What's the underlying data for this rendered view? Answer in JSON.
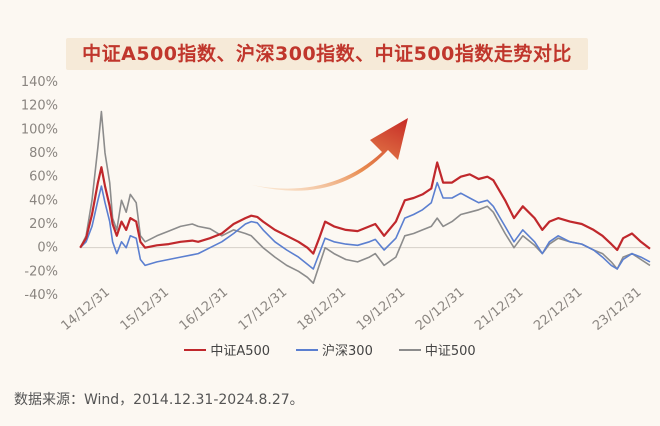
{
  "chart_data": {
    "type": "line",
    "title": "中证A500指数、沪深300指数、中证500指数走势对比",
    "xlabel": "",
    "ylabel": "",
    "ylim": [
      -40,
      140
    ],
    "y_ticks": [
      "-40%",
      "-20%",
      "0%",
      "20%",
      "40%",
      "60%",
      "80%",
      "100%",
      "120%",
      "140%"
    ],
    "x_ticks": [
      "14/12/31",
      "15/12/31",
      "16/12/31",
      "17/12/31",
      "18/12/31",
      "19/12/31",
      "20/12/31",
      "21/12/31",
      "22/12/31",
      "23/12/31"
    ],
    "xlim": [
      2014.997,
      2024.655
    ],
    "grid": false,
    "legend_position": "bottom",
    "series": [
      {
        "name": "中证A500",
        "color": "#c0282c",
        "points": [
          [
            2015.0,
            0
          ],
          [
            2015.1,
            8
          ],
          [
            2015.2,
            28
          ],
          [
            2015.3,
            55
          ],
          [
            2015.36,
            68
          ],
          [
            2015.42,
            52
          ],
          [
            2015.5,
            35
          ],
          [
            2015.55,
            20
          ],
          [
            2015.62,
            10
          ],
          [
            2015.7,
            22
          ],
          [
            2015.78,
            15
          ],
          [
            2015.85,
            25
          ],
          [
            2015.95,
            22
          ],
          [
            2016.02,
            5
          ],
          [
            2016.1,
            0
          ],
          [
            2016.3,
            2
          ],
          [
            2016.5,
            3
          ],
          [
            2016.7,
            5
          ],
          [
            2016.9,
            6
          ],
          [
            2017.0,
            5
          ],
          [
            2017.2,
            8
          ],
          [
            2017.4,
            12
          ],
          [
            2017.6,
            20
          ],
          [
            2017.8,
            25
          ],
          [
            2017.9,
            27
          ],
          [
            2018.0,
            26
          ],
          [
            2018.1,
            22
          ],
          [
            2018.3,
            15
          ],
          [
            2018.5,
            10
          ],
          [
            2018.7,
            5
          ],
          [
            2018.85,
            0
          ],
          [
            2018.95,
            -5
          ],
          [
            2019.05,
            8
          ],
          [
            2019.15,
            22
          ],
          [
            2019.3,
            18
          ],
          [
            2019.5,
            15
          ],
          [
            2019.7,
            14
          ],
          [
            2019.9,
            18
          ],
          [
            2020.0,
            20
          ],
          [
            2020.15,
            10
          ],
          [
            2020.35,
            22
          ],
          [
            2020.5,
            40
          ],
          [
            2020.65,
            42
          ],
          [
            2020.8,
            45
          ],
          [
            2020.95,
            50
          ],
          [
            2021.05,
            72
          ],
          [
            2021.15,
            55
          ],
          [
            2021.3,
            55
          ],
          [
            2021.45,
            60
          ],
          [
            2021.6,
            62
          ],
          [
            2021.75,
            58
          ],
          [
            2021.9,
            60
          ],
          [
            2022.0,
            57
          ],
          [
            2022.2,
            40
          ],
          [
            2022.35,
            25
          ],
          [
            2022.5,
            35
          ],
          [
            2022.7,
            25
          ],
          [
            2022.83,
            15
          ],
          [
            2022.95,
            22
          ],
          [
            2023.1,
            25
          ],
          [
            2023.3,
            22
          ],
          [
            2023.5,
            20
          ],
          [
            2023.7,
            15
          ],
          [
            2023.85,
            10
          ],
          [
            2024.0,
            3
          ],
          [
            2024.1,
            -2
          ],
          [
            2024.2,
            8
          ],
          [
            2024.35,
            12
          ],
          [
            2024.5,
            5
          ],
          [
            2024.655,
            -1
          ]
        ]
      },
      {
        "name": "沪深300",
        "color": "#5b7fd0",
        "points": [
          [
            2015.0,
            0
          ],
          [
            2015.1,
            5
          ],
          [
            2015.2,
            18
          ],
          [
            2015.3,
            40
          ],
          [
            2015.36,
            52
          ],
          [
            2015.42,
            38
          ],
          [
            2015.5,
            22
          ],
          [
            2015.55,
            5
          ],
          [
            2015.62,
            -5
          ],
          [
            2015.7,
            5
          ],
          [
            2015.78,
            0
          ],
          [
            2015.85,
            10
          ],
          [
            2015.95,
            8
          ],
          [
            2016.02,
            -10
          ],
          [
            2016.1,
            -15
          ],
          [
            2016.3,
            -12
          ],
          [
            2016.5,
            -10
          ],
          [
            2016.7,
            -8
          ],
          [
            2016.9,
            -6
          ],
          [
            2017.0,
            -5
          ],
          [
            2017.2,
            0
          ],
          [
            2017.4,
            5
          ],
          [
            2017.6,
            12
          ],
          [
            2017.8,
            20
          ],
          [
            2017.9,
            22
          ],
          [
            2018.0,
            21
          ],
          [
            2018.1,
            15
          ],
          [
            2018.3,
            5
          ],
          [
            2018.5,
            -2
          ],
          [
            2018.7,
            -8
          ],
          [
            2018.85,
            -14
          ],
          [
            2018.95,
            -18
          ],
          [
            2019.05,
            -5
          ],
          [
            2019.15,
            8
          ],
          [
            2019.3,
            5
          ],
          [
            2019.5,
            3
          ],
          [
            2019.7,
            2
          ],
          [
            2019.9,
            5
          ],
          [
            2020.0,
            7
          ],
          [
            2020.15,
            -2
          ],
          [
            2020.35,
            8
          ],
          [
            2020.5,
            25
          ],
          [
            2020.65,
            28
          ],
          [
            2020.8,
            32
          ],
          [
            2020.95,
            38
          ],
          [
            2021.05,
            55
          ],
          [
            2021.15,
            42
          ],
          [
            2021.3,
            42
          ],
          [
            2021.45,
            46
          ],
          [
            2021.6,
            42
          ],
          [
            2021.75,
            38
          ],
          [
            2021.9,
            40
          ],
          [
            2022.0,
            35
          ],
          [
            2022.2,
            18
          ],
          [
            2022.35,
            5
          ],
          [
            2022.5,
            15
          ],
          [
            2022.7,
            5
          ],
          [
            2022.83,
            -5
          ],
          [
            2022.95,
            5
          ],
          [
            2023.1,
            10
          ],
          [
            2023.3,
            5
          ],
          [
            2023.5,
            3
          ],
          [
            2023.7,
            -2
          ],
          [
            2023.85,
            -8
          ],
          [
            2024.0,
            -15
          ],
          [
            2024.1,
            -18
          ],
          [
            2024.2,
            -10
          ],
          [
            2024.35,
            -5
          ],
          [
            2024.5,
            -8
          ],
          [
            2024.655,
            -12
          ]
        ]
      },
      {
        "name": "中证500",
        "color": "#8c8c8c",
        "points": [
          [
            2015.0,
            0
          ],
          [
            2015.1,
            10
          ],
          [
            2015.2,
            40
          ],
          [
            2015.3,
            85
          ],
          [
            2015.36,
            115
          ],
          [
            2015.42,
            80
          ],
          [
            2015.5,
            55
          ],
          [
            2015.55,
            25
          ],
          [
            2015.62,
            15
          ],
          [
            2015.7,
            40
          ],
          [
            2015.78,
            30
          ],
          [
            2015.85,
            45
          ],
          [
            2015.95,
            38
          ],
          [
            2016.02,
            10
          ],
          [
            2016.1,
            5
          ],
          [
            2016.3,
            10
          ],
          [
            2016.5,
            14
          ],
          [
            2016.7,
            18
          ],
          [
            2016.9,
            20
          ],
          [
            2017.0,
            18
          ],
          [
            2017.2,
            16
          ],
          [
            2017.4,
            10
          ],
          [
            2017.6,
            15
          ],
          [
            2017.8,
            12
          ],
          [
            2017.9,
            10
          ],
          [
            2018.0,
            5
          ],
          [
            2018.1,
            0
          ],
          [
            2018.3,
            -8
          ],
          [
            2018.5,
            -15
          ],
          [
            2018.7,
            -20
          ],
          [
            2018.85,
            -25
          ],
          [
            2018.95,
            -30
          ],
          [
            2019.05,
            -15
          ],
          [
            2019.15,
            0
          ],
          [
            2019.3,
            -5
          ],
          [
            2019.5,
            -10
          ],
          [
            2019.7,
            -12
          ],
          [
            2019.9,
            -8
          ],
          [
            2020.0,
            -5
          ],
          [
            2020.15,
            -15
          ],
          [
            2020.35,
            -8
          ],
          [
            2020.5,
            10
          ],
          [
            2020.65,
            12
          ],
          [
            2020.8,
            15
          ],
          [
            2020.95,
            18
          ],
          [
            2021.05,
            25
          ],
          [
            2021.15,
            18
          ],
          [
            2021.3,
            22
          ],
          [
            2021.45,
            28
          ],
          [
            2021.6,
            30
          ],
          [
            2021.75,
            32
          ],
          [
            2021.9,
            35
          ],
          [
            2022.0,
            30
          ],
          [
            2022.2,
            12
          ],
          [
            2022.35,
            0
          ],
          [
            2022.5,
            10
          ],
          [
            2022.7,
            2
          ],
          [
            2022.83,
            -5
          ],
          [
            2022.95,
            3
          ],
          [
            2023.1,
            8
          ],
          [
            2023.3,
            5
          ],
          [
            2023.5,
            3
          ],
          [
            2023.7,
            -2
          ],
          [
            2023.85,
            -5
          ],
          [
            2024.0,
            -12
          ],
          [
            2024.1,
            -18
          ],
          [
            2024.2,
            -8
          ],
          [
            2024.35,
            -5
          ],
          [
            2024.5,
            -10
          ],
          [
            2024.655,
            -15
          ]
        ]
      }
    ],
    "annotations": [
      "upward-arrow"
    ]
  },
  "legend": {
    "items": [
      {
        "label": "中证A500",
        "color": "#c0282c"
      },
      {
        "label": "沪深300",
        "color": "#5b7fd0"
      },
      {
        "label": "中证500",
        "color": "#8c8c8c"
      }
    ]
  },
  "source_note": "数据来源：Wind，2014.12.31-2024.8.27。"
}
